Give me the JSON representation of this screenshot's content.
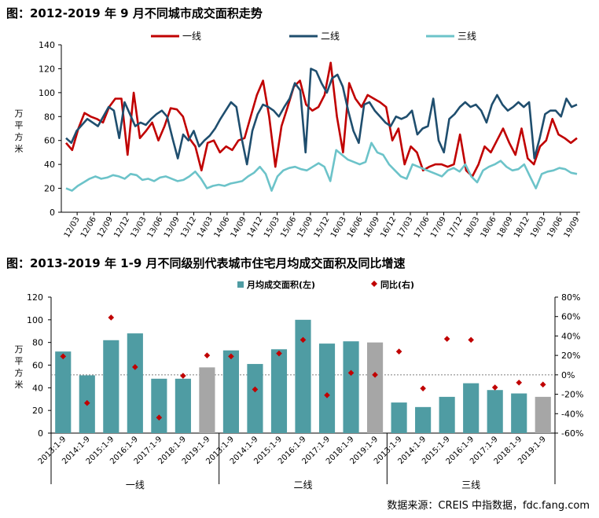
{
  "source": "数据来源：CREIS 中指数据，fdc.fang.com",
  "chart_data": [
    {
      "type": "line",
      "title": "图：2012-2019 年 9 月不同城市成交面积走势",
      "ylabel": "万平方米",
      "ylim": [
        0,
        140
      ],
      "yticks": [
        0,
        20,
        40,
        60,
        80,
        100,
        120,
        140
      ],
      "xtick_labels": [
        "12/03",
        "12/06",
        "12/09",
        "12/12",
        "13/03",
        "13/06",
        "13/09",
        "13/12",
        "14/03",
        "14/06",
        "14/09",
        "14/12",
        "15/03",
        "15/06",
        "15/09",
        "15/12",
        "16/03",
        "16/06",
        "16/09",
        "16/12",
        "17/03",
        "17/06",
        "17/09",
        "17/12",
        "18/03",
        "18/06",
        "18/09",
        "18/12",
        "19/03",
        "19/06",
        "19/09"
      ],
      "x_start": "2012-01",
      "x_end": "2019-09",
      "colors": {
        "一线": "#c00000",
        "二线": "#1f4e6e",
        "三线": "#6cc3c9"
      },
      "series": [
        {
          "name": "一线",
          "values": [
            58,
            52,
            70,
            83,
            80,
            78,
            75,
            88,
            95,
            95,
            48,
            100,
            62,
            68,
            75,
            60,
            72,
            87,
            86,
            80,
            62,
            55,
            35,
            58,
            60,
            50,
            55,
            52,
            60,
            62,
            80,
            98,
            110,
            80,
            38,
            72,
            88,
            105,
            110,
            90,
            85,
            88,
            98,
            125,
            80,
            50,
            108,
            95,
            88,
            98,
            95,
            92,
            88,
            60,
            70,
            40,
            55,
            50,
            35,
            38,
            40,
            40,
            38,
            40,
            65,
            35,
            30,
            40,
            55,
            50,
            60,
            70,
            58,
            48,
            70,
            45,
            40,
            55,
            60,
            78,
            65,
            62,
            58,
            62
          ]
        },
        {
          "name": "二线",
          "values": [
            62,
            58,
            68,
            73,
            78,
            75,
            72,
            80,
            88,
            85,
            62,
            92,
            82,
            72,
            75,
            73,
            78,
            82,
            85,
            80,
            62,
            45,
            65,
            60,
            68,
            55,
            60,
            64,
            70,
            78,
            85,
            92,
            88,
            62,
            40,
            68,
            82,
            90,
            88,
            85,
            80,
            88,
            95,
            108,
            102,
            50,
            120,
            118,
            108,
            100,
            112,
            115,
            105,
            85,
            68,
            58,
            90,
            92,
            85,
            80,
            75,
            72,
            80,
            78,
            80,
            85,
            65,
            70,
            72,
            95,
            60,
            50,
            78,
            82,
            88,
            92,
            88,
            90,
            85,
            75,
            90,
            98,
            90,
            85,
            88,
            92,
            88,
            92,
            45,
            62,
            82,
            85,
            85,
            80,
            95,
            88,
            90
          ]
        },
        {
          "name": "三线",
          "values": [
            20,
            18,
            22,
            25,
            28,
            30,
            28,
            29,
            31,
            30,
            28,
            32,
            31,
            27,
            28,
            26,
            29,
            30,
            28,
            26,
            27,
            30,
            34,
            28,
            20,
            22,
            23,
            22,
            24,
            25,
            26,
            30,
            33,
            38,
            32,
            18,
            30,
            35,
            37,
            38,
            36,
            35,
            38,
            41,
            38,
            26,
            52,
            48,
            44,
            42,
            40,
            42,
            58,
            50,
            48,
            40,
            35,
            30,
            28,
            40,
            38,
            36,
            34,
            32,
            30,
            35,
            37,
            34,
            40,
            30,
            25,
            35,
            38,
            40,
            43,
            38,
            35,
            36,
            40,
            30,
            20,
            32,
            34,
            35,
            37,
            36,
            33,
            32
          ]
        }
      ],
      "legend_position": "top-center",
      "grid": false
    },
    {
      "type": "bar",
      "title": "图：2013-2019 年 1-9 月不同级别代表城市住宅月均成交面积及同比增速",
      "ylabel": "万平方米",
      "ylim_left": [
        0,
        120
      ],
      "yticks_left": [
        0,
        20,
        40,
        60,
        80,
        100,
        120
      ],
      "ylim_right": [
        -60,
        80
      ],
      "yticks_right": [
        "-60%",
        "-40%",
        "-20%",
        "0%",
        "20%",
        "40%",
        "60%",
        "80%"
      ],
      "categories": [
        "2013:1-9",
        "2014:1-9",
        "2015:1-9",
        "2016:1-9",
        "2017:1-9",
        "2018:1-9",
        "2019:1-9"
      ],
      "groups": [
        "一线",
        "二线",
        "三线"
      ],
      "legend": [
        {
          "name": "月均成交面积(左)",
          "color": "#4f9ca3"
        },
        {
          "name": "同比(右)",
          "color": "#c00000"
        }
      ],
      "bar_color": "#4f9ca3",
      "bar_color_highlight": "#a6a6a6",
      "marker_color": "#c00000",
      "bars": [
        [
          72,
          51,
          82,
          88,
          48,
          48,
          58
        ],
        [
          73,
          61,
          74,
          100,
          79,
          81,
          80
        ],
        [
          27,
          23,
          32,
          44,
          38,
          35,
          32
        ]
      ],
      "yoy_percent": [
        [
          19,
          -29,
          59,
          8,
          -44,
          -1,
          20
        ],
        [
          19,
          -15,
          22,
          36,
          -21,
          2,
          0
        ],
        [
          24,
          -14,
          37,
          36,
          -13,
          -8,
          -10
        ]
      ],
      "reference_line_percent": 0,
      "legend_position": "top-center"
    }
  ]
}
